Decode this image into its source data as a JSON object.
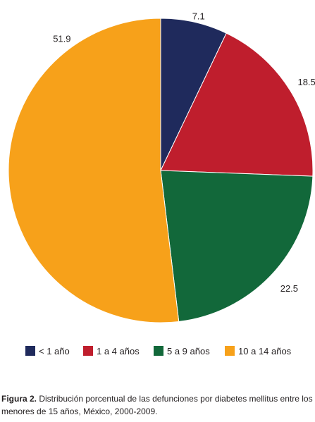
{
  "chart_data": {
    "type": "pie",
    "categories": [
      "< 1 año",
      "1 a 4 años",
      "5 a 9 años",
      "10 a 14 años"
    ],
    "values": [
      7.1,
      18.5,
      22.5,
      51.9
    ],
    "colors": [
      "#1f2a5c",
      "#bf1e2d",
      "#12683a",
      "#f7a11a"
    ],
    "start_angle": "12 o'clock",
    "direction": "clockwise",
    "data_labels": [
      "7.1",
      "18.5",
      "22.5",
      "51.9"
    ],
    "legend_position": "bottom"
  },
  "caption": {
    "prefix": "Figura 2.",
    "text": " Distribución porcentual de las defunciones por diabetes mellitus entre los menores de 15 años, México, 2000-2009."
  }
}
